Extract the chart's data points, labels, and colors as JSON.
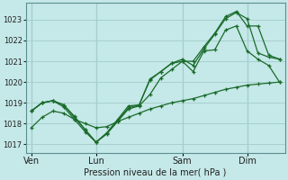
{
  "xlabel": "Pression niveau de la mer( hPa )",
  "bg_color": "#c5e8e8",
  "grid_color": "#a8d0d0",
  "line_color": "#1a6b2a",
  "ylim": [
    1016.6,
    1023.8
  ],
  "yticks": [
    1017,
    1018,
    1019,
    1020,
    1021,
    1022,
    1023
  ],
  "day_labels": [
    "Ven",
    "Lun",
    "Sam",
    "Dim"
  ],
  "day_positions": [
    0,
    6,
    14,
    20
  ],
  "xlim": [
    -0.5,
    23.5
  ],
  "s1_x": [
    0,
    1,
    2,
    3,
    4,
    5,
    6,
    7,
    8,
    9,
    10,
    11,
    12,
    13,
    14,
    15,
    16,
    17,
    18,
    19,
    20,
    21,
    22,
    23
  ],
  "s1": [
    1017.8,
    1018.3,
    1018.6,
    1018.5,
    1018.2,
    1018.0,
    1017.8,
    1017.85,
    1018.1,
    1018.3,
    1018.5,
    1018.7,
    1018.85,
    1019.0,
    1019.1,
    1019.2,
    1019.35,
    1019.5,
    1019.65,
    1019.75,
    1019.85,
    1019.9,
    1019.95,
    1020.0
  ],
  "s2_x": [
    0,
    1,
    2,
    3,
    4,
    5,
    6,
    7,
    8,
    9,
    10,
    11,
    12,
    13,
    14,
    15,
    16,
    17,
    18,
    19,
    20,
    21,
    22,
    23
  ],
  "s2": [
    1018.6,
    1019.0,
    1019.1,
    1018.8,
    1018.2,
    1017.6,
    1017.1,
    1017.5,
    1018.1,
    1018.7,
    1018.85,
    1019.4,
    1020.2,
    1020.6,
    1021.0,
    1020.5,
    1021.5,
    1021.55,
    1022.5,
    1022.7,
    1021.5,
    1021.1,
    1020.8,
    1020.0
  ],
  "s3_x": [
    0,
    1,
    2,
    3,
    4,
    5,
    6,
    7,
    8,
    9,
    10,
    11,
    12,
    13,
    14,
    15,
    16,
    17,
    18,
    19,
    20,
    21,
    22,
    23
  ],
  "s3": [
    1018.6,
    1019.0,
    1019.1,
    1018.9,
    1018.3,
    1017.7,
    1017.1,
    1017.55,
    1018.15,
    1018.75,
    1018.9,
    1020.1,
    1020.5,
    1020.9,
    1021.1,
    1020.8,
    1021.6,
    1022.3,
    1023.05,
    1023.35,
    1023.05,
    1021.4,
    1021.2,
    1021.1
  ],
  "s4_x": [
    0,
    1,
    2,
    3,
    4,
    5,
    6,
    7,
    8,
    9,
    10,
    11,
    12,
    13,
    14,
    15,
    16,
    17,
    18,
    19,
    20,
    21,
    22,
    23
  ],
  "s4": [
    1018.6,
    1019.0,
    1019.1,
    1018.9,
    1018.35,
    1017.7,
    1017.1,
    1017.55,
    1018.2,
    1018.85,
    1018.9,
    1020.15,
    1020.5,
    1020.9,
    1021.0,
    1021.0,
    1021.7,
    1022.35,
    1023.15,
    1023.4,
    1022.7,
    1022.7,
    1021.3,
    1021.1
  ]
}
